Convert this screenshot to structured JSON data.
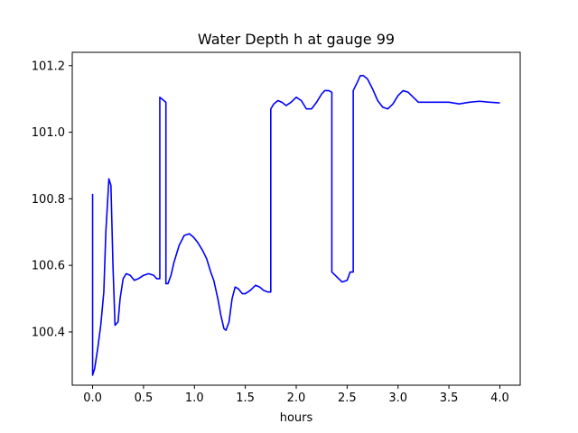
{
  "chart_data": {
    "type": "line",
    "title": "Water Depth h at gauge 99",
    "xlabel": "hours",
    "ylabel": "",
    "xlim": [
      -0.2,
      4.2
    ],
    "ylim": [
      100.24,
      101.24
    ],
    "xticks": [
      0.0,
      0.5,
      1.0,
      1.5,
      2.0,
      2.5,
      3.0,
      3.5,
      4.0
    ],
    "xtick_labels": [
      "0.0",
      "0.5",
      "1.0",
      "1.5",
      "2.0",
      "2.5",
      "3.0",
      "3.5",
      "4.0"
    ],
    "yticks": [
      100.4,
      100.6,
      100.8,
      101.0,
      101.2
    ],
    "ytick_labels": [
      "100.4",
      "100.6",
      "100.8",
      "101.0",
      "101.2"
    ],
    "grid": false,
    "legend": "none",
    "series": [
      {
        "color": "#0000ff",
        "x": [
          0.0,
          0.0,
          0.02,
          0.05,
          0.08,
          0.11,
          0.13,
          0.16,
          0.18,
          0.2,
          0.22,
          0.25,
          0.27,
          0.3,
          0.33,
          0.37,
          0.41,
          0.45,
          0.5,
          0.55,
          0.6,
          0.63,
          0.66,
          0.66,
          0.68,
          0.72,
          0.72,
          0.74,
          0.77,
          0.8,
          0.85,
          0.9,
          0.95,
          0.99,
          1.03,
          1.08,
          1.12,
          1.16,
          1.19,
          1.23,
          1.26,
          1.29,
          1.31,
          1.34,
          1.37,
          1.4,
          1.43,
          1.47,
          1.5,
          1.55,
          1.6,
          1.64,
          1.68,
          1.72,
          1.75,
          1.75,
          1.78,
          1.82,
          1.86,
          1.9,
          1.95,
          2.0,
          2.05,
          2.1,
          2.15,
          2.2,
          2.25,
          2.28,
          2.32,
          2.35,
          2.35,
          2.4,
          2.45,
          2.5,
          2.53,
          2.56,
          2.56,
          2.6,
          2.63,
          2.66,
          2.7,
          2.75,
          2.8,
          2.85,
          2.9,
          2.95,
          3.0,
          3.05,
          3.1,
          3.15,
          3.2,
          3.3,
          3.4,
          3.5,
          3.6,
          3.7,
          3.8,
          3.9,
          4.0
        ],
        "y": [
          100.815,
          100.27,
          100.29,
          100.35,
          100.42,
          100.52,
          100.7,
          100.86,
          100.84,
          100.6,
          100.42,
          100.43,
          100.5,
          100.56,
          100.575,
          100.57,
          100.555,
          100.56,
          100.57,
          100.575,
          100.57,
          100.56,
          100.56,
          101.105,
          101.1,
          101.09,
          100.545,
          100.545,
          100.57,
          100.61,
          100.66,
          100.69,
          100.695,
          100.685,
          100.67,
          100.645,
          100.62,
          100.58,
          100.555,
          100.5,
          100.45,
          100.41,
          100.405,
          100.43,
          100.5,
          100.535,
          100.53,
          100.515,
          100.515,
          100.525,
          100.54,
          100.535,
          100.525,
          100.52,
          100.52,
          101.07,
          101.085,
          101.095,
          101.09,
          101.08,
          101.09,
          101.105,
          101.095,
          101.07,
          101.07,
          101.09,
          101.115,
          101.125,
          101.125,
          101.12,
          100.58,
          100.565,
          100.55,
          100.555,
          100.58,
          100.58,
          101.125,
          101.15,
          101.17,
          101.17,
          101.16,
          101.13,
          101.095,
          101.075,
          101.07,
          101.085,
          101.11,
          101.125,
          101.12,
          101.105,
          101.09,
          101.09,
          101.09,
          101.09,
          101.085,
          101.09,
          101.093,
          101.09,
          101.088
        ]
      }
    ]
  }
}
